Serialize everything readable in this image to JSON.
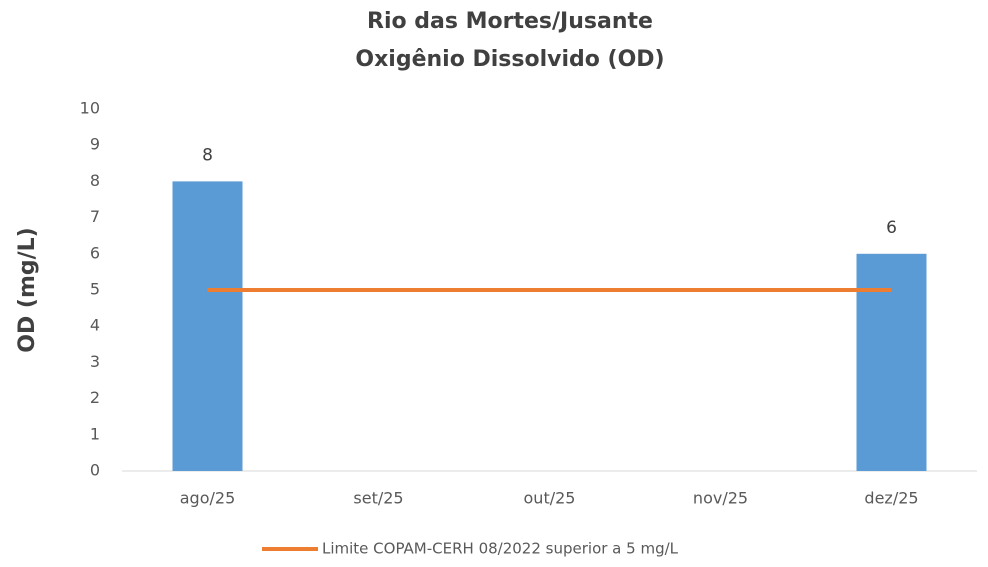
{
  "chart_data": {
    "type": "bar",
    "title": "Rio das Mortes/Jusante",
    "subtitle": "Oxigênio Dissolvido (OD)",
    "y_label": "OD (mg/L)",
    "categories": [
      "ago/25",
      "set/25",
      "out/25",
      "nov/25",
      "dez/25"
    ],
    "series": [
      {
        "type": "bar",
        "color": "#5b9bd5",
        "values": [
          8,
          null,
          null,
          null,
          6
        ]
      },
      {
        "type": "line",
        "name": "Limite COPAM-CERH 08/2022 superior a 5 mg/L",
        "color": "#ed7d31",
        "values": [
          5,
          5,
          5,
          5,
          5
        ]
      }
    ],
    "ylim": [
      0,
      10
    ],
    "yticks": [
      0,
      1,
      2,
      3,
      4,
      5,
      6,
      7,
      8,
      9,
      10
    ],
    "grid": false,
    "legend": "bottom"
  }
}
